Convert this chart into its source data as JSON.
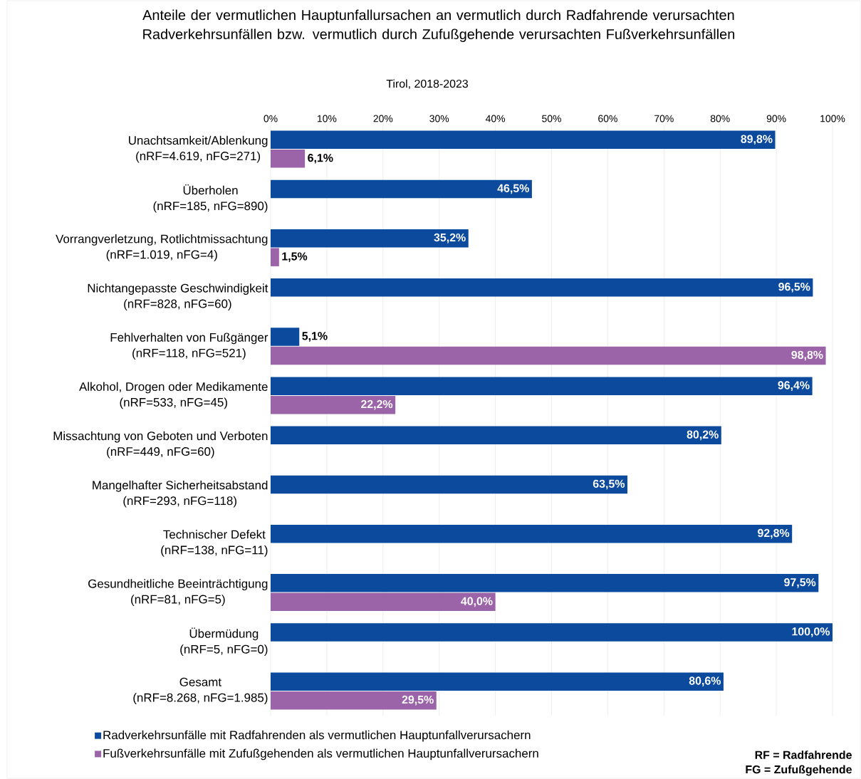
{
  "chart_data": {
    "type": "bar",
    "orientation": "horizontal",
    "title": "Anteile der vermutlichen Hauptunfallursachen an vermutlich durch Radfahrende verursachten Radverkehrsunfällen bzw. vermutlich durch Zufußgehende verursachten Fußverkehrsunfällen",
    "subtitle": "Tirol, 2018-2023",
    "categories": [
      "Unachtsamkeit/Ablenkung\n(nRF=4.619, nFG=271)",
      "Überholen\n(nRF=185, nFG=890)",
      "Vorrangverletzung, Rotlichtmissachtung\n(nRF=1.019, nFG=4)",
      "Nichtangepasste Geschwindigkeit\n(nRF=828, nFG=60)",
      "Fehlverhalten von Fußgänger\n(nRF=118, nFG=521)",
      "Alkohol, Drogen oder Medikamente\n(nRF=533, nFG=45)",
      "Missachtung von Geboten und Verboten\n(nRF=449, nFG=60)",
      "Mangelhafter Sicherheitsabstand\n(nRF=293, nFG=118)",
      "Technischer Defekt\n(nRF=138, nFG=11)",
      "Gesundheitliche Beeinträchtigung\n(nRF=81, nFG=5)",
      "Übermüdung\n(nRF=5, nFG=0)",
      "Gesamt\n(nRF=8.268, nFG=1.985)"
    ],
    "series": [
      {
        "name": "Radverkehrsunfälle mit Radfahrenden als vermutlichen Hauptunfallverursachern",
        "color": "#0b4a9c",
        "values": [
          89.8,
          46.5,
          35.2,
          96.5,
          5.1,
          96.4,
          80.2,
          63.5,
          92.8,
          97.5,
          100.0,
          80.6
        ],
        "value_labels": [
          "89,8%",
          "46,5%",
          "35,2%",
          "96,5%",
          "5,1%",
          "96,4%",
          "80,2%",
          "63,5%",
          "92,8%",
          "97,5%",
          "100,0%",
          "80,6%"
        ]
      },
      {
        "name": "Fußverkehrsunfälle mit Zufußgehenden als vermutlichen Hauptunfallverursachern",
        "color": "#9c64a8",
        "values": [
          6.1,
          null,
          1.5,
          null,
          98.8,
          22.2,
          null,
          null,
          null,
          40.0,
          null,
          29.5
        ],
        "value_labels": [
          "6,1%",
          null,
          "1,5%",
          null,
          "98,8%",
          "22,2%",
          null,
          null,
          null,
          "40,0%",
          null,
          "29,5%"
        ]
      }
    ],
    "xlim": [
      0,
      100
    ],
    "xticks": [
      {
        "value": 0,
        "label": "0%"
      },
      {
        "value": 10,
        "label": "10%"
      },
      {
        "value": 20,
        "label": "20%"
      },
      {
        "value": 30,
        "label": "30%"
      },
      {
        "value": 40,
        "label": "40%"
      },
      {
        "value": 50,
        "label": "50%"
      },
      {
        "value": 60,
        "label": "60%"
      },
      {
        "value": 70,
        "label": "70%"
      },
      {
        "value": 80,
        "label": "80%"
      },
      {
        "value": 90,
        "label": "90%"
      },
      {
        "value": 100,
        "label": "100%"
      }
    ],
    "grid": "x",
    "legend": "bottom",
    "annotations": [
      "RF = Radfahrende",
      "FG = Zufußgehende"
    ]
  }
}
